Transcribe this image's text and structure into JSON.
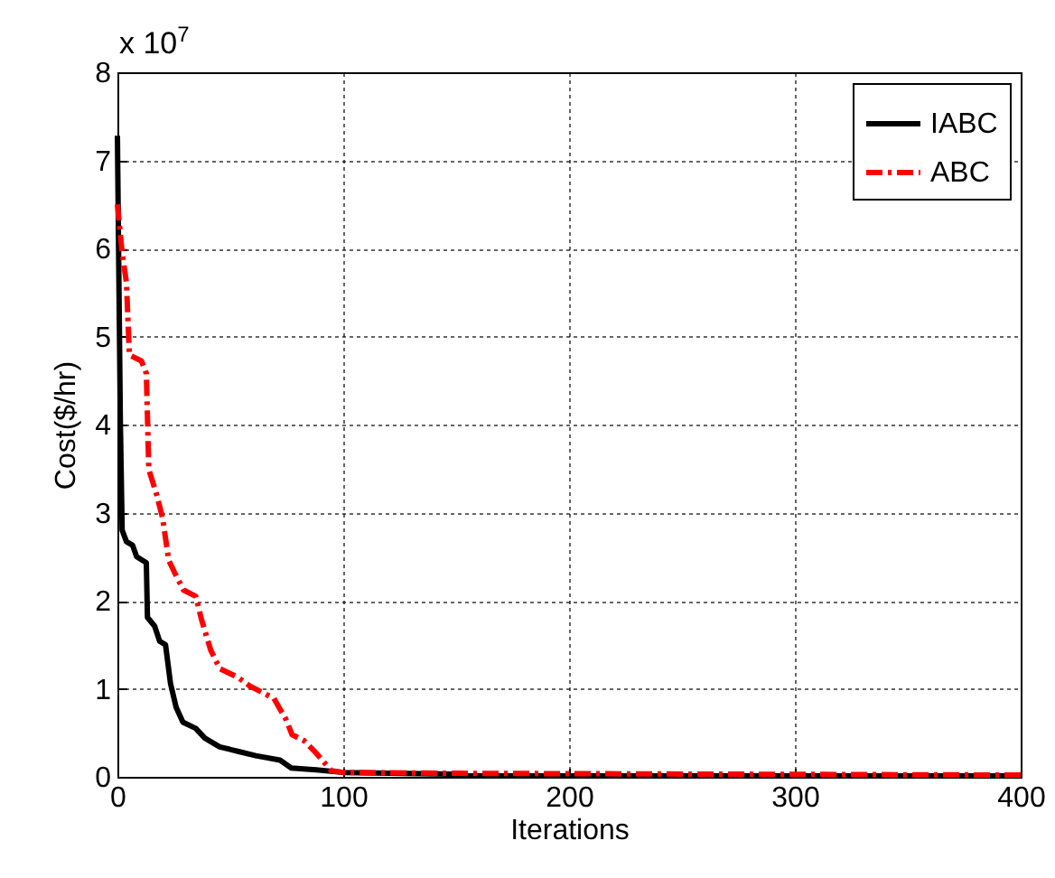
{
  "chart_data": {
    "type": "line",
    "xlabel": "Iterations",
    "ylabel": "Cost($/hr)",
    "annotations": [
      "x 10$^{7}$"
    ],
    "xlim": [
      0,
      400
    ],
    "xticks": [
      0,
      100,
      200,
      300,
      400
    ],
    "ylim": [
      0,
      8
    ],
    "yticks": [
      0,
      1,
      2,
      3,
      4,
      5,
      6,
      7,
      8
    ],
    "grid": true,
    "legend": "top right",
    "series": [
      {
        "name": "IABC",
        "color": "#000000",
        "line_style": "solid",
        "x": [
          0,
          1.3,
          2.1,
          4,
          6.7,
          8.5,
          12.8,
          13.3,
          16.5,
          18.7,
          21.3,
          23.5,
          26,
          29,
          34.7,
          38.7,
          45.3,
          53.3,
          61.3,
          72,
          77,
          88,
          100,
          148,
          152,
          400
        ],
        "values": [
          7.28,
          4.03,
          2.8,
          2.67,
          2.63,
          2.5,
          2.43,
          1.81,
          1.71,
          1.54,
          1.5,
          1.06,
          0.79,
          0.62,
          0.55,
          0.44,
          0.34,
          0.29,
          0.24,
          0.19,
          0.1,
          0.08,
          0.05,
          0.03,
          0.01,
          0.01
        ]
      },
      {
        "name": "ABC",
        "color": "#ff0000",
        "line_style": "dashdot",
        "x": [
          0,
          2.1,
          4,
          5.3,
          10.7,
          12.8,
          13.9,
          17.3,
          20,
          22.7,
          25.3,
          29.3,
          34.7,
          37.3,
          41.3,
          45.3,
          53.3,
          58.7,
          64,
          69.3,
          74.7,
          77.3,
          82.7,
          88,
          94.7,
          100,
          150,
          400
        ],
        "values": [
          6.5,
          5.95,
          5.61,
          4.79,
          4.72,
          4.58,
          3.49,
          3.21,
          2.94,
          2.46,
          2.32,
          2.12,
          2.05,
          1.78,
          1.44,
          1.23,
          1.13,
          1.03,
          0.96,
          0.89,
          0.65,
          0.48,
          0.41,
          0.27,
          0.07,
          0.05,
          0.04,
          0.02
        ]
      }
    ]
  }
}
